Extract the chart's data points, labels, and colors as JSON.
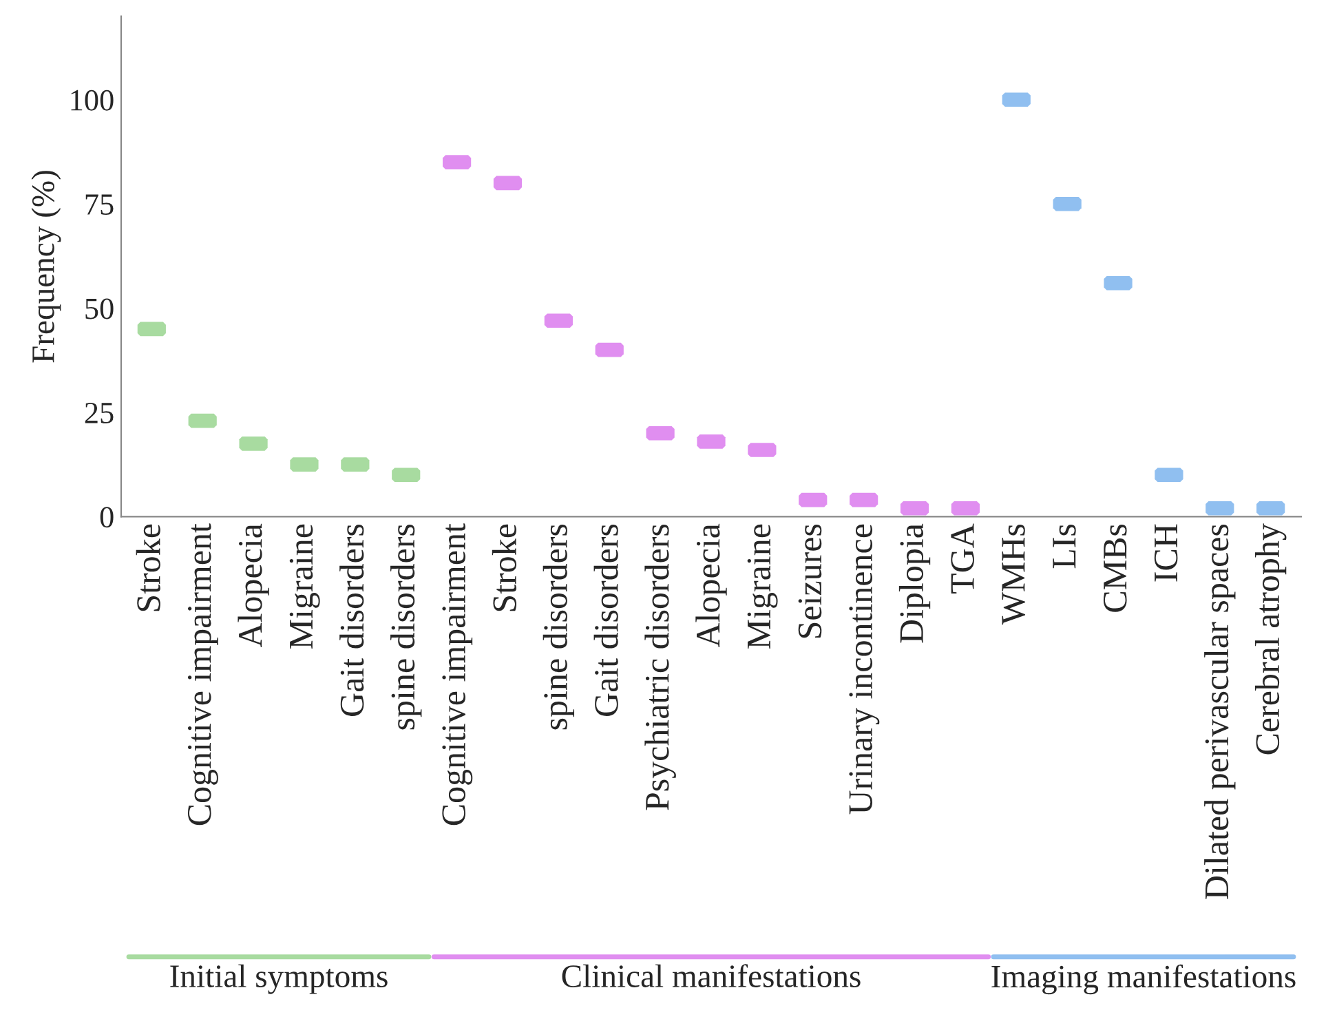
{
  "chart_data": {
    "type": "scatter",
    "ylabel": "Frequency (%)",
    "categories": [
      "Stroke",
      "Cognitive impairment",
      "Alopecia",
      "Migraine",
      "Gait disorders",
      "spine disorders",
      "Cognitive impairment",
      "Stroke",
      "spine disorders",
      "Gait disorders",
      "Psychiatric disorders",
      "Alopecia",
      "Migraine",
      "Seizures",
      "Urinary incontinence",
      "Diplopia",
      "TGA",
      "WMHs",
      "LIs",
      "CMBs",
      "ICH",
      "Dilated perivascular spaces",
      "Cerebral atrophy"
    ],
    "series": [
      {
        "color": "#a8dba0",
        "values": [
          45,
          23,
          17.5,
          12.5,
          12.5,
          10,
          null,
          null,
          null,
          null,
          null,
          null,
          null,
          null,
          null,
          null,
          null,
          null,
          null,
          null,
          null,
          null,
          null
        ]
      },
      {
        "color": "#e08ef0",
        "values": [
          null,
          null,
          null,
          null,
          null,
          null,
          85,
          80,
          47,
          40,
          20,
          18,
          16,
          4,
          4,
          2,
          2,
          null,
          null,
          null,
          null,
          null,
          null
        ]
      },
      {
        "color": "#90bff0",
        "values": [
          null,
          null,
          null,
          null,
          null,
          null,
          null,
          null,
          null,
          null,
          null,
          null,
          null,
          null,
          null,
          null,
          null,
          100,
          75,
          56,
          10,
          2,
          2
        ]
      }
    ],
    "annotations": [
      "Initial symptoms",
      "Clinical manifestations",
      "Imaging manifestations"
    ],
    "ylim": [
      0,
      120
    ],
    "yticks": [
      0,
      25,
      50,
      75,
      100
    ],
    "grid": false
  }
}
